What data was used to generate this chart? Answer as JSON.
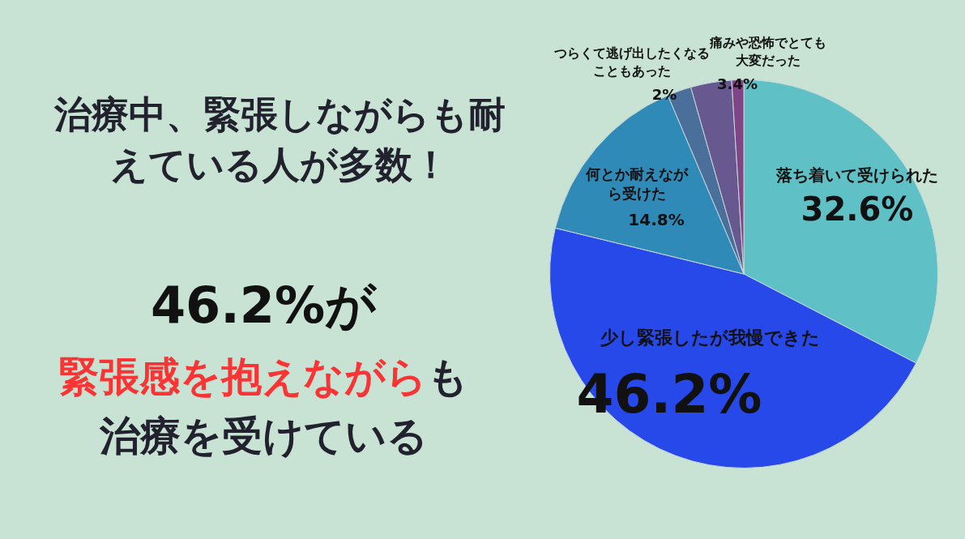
{
  "chart_data": {
    "type": "pie",
    "title": "治療中、緊張しながらも耐えている人が多数！",
    "annotations": [
      "46.2%が",
      "緊張感を抱えながら",
      "も",
      "治療を受けている"
    ],
    "categories": [
      "落ち着いて受けられた",
      "少し緊張したが我慢できた",
      "何とか耐えながら受けた",
      "つらくて逃げ出したくなることもあった",
      "痛みや恐怖でとても大変だった",
      null
    ],
    "values": [
      32.6,
      46.2,
      14.8,
      2,
      3.4,
      1
    ],
    "colors": [
      "#5fc1c6",
      "#2749ea",
      "#2f8ab8",
      "#4a6f9a",
      "#675890",
      "#7f4585"
    ],
    "value_labels": [
      "32.6%",
      "46.2%",
      "14.8%",
      "2%",
      "3.4%",
      null
    ],
    "legend": false
  }
}
